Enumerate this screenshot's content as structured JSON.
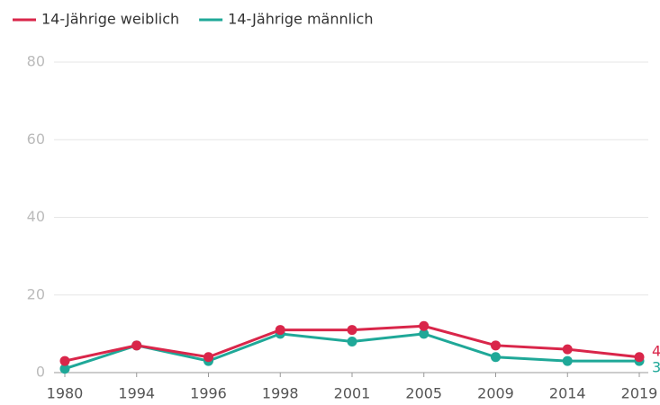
{
  "chart_data": {
    "type": "line",
    "categories": [
      "1980",
      "1994",
      "1996",
      "1998",
      "2001",
      "2005",
      "2009",
      "2014",
      "2019"
    ],
    "series": [
      {
        "name": "14-Jährige weiblich",
        "color": "#d9264a",
        "values": [
          3,
          7,
          4,
          11,
          11,
          12,
          7,
          6,
          4
        ]
      },
      {
        "name": "14-Jährige männlich",
        "color": "#1fa898",
        "values": [
          1,
          7,
          3,
          10,
          8,
          10,
          4,
          3,
          3
        ]
      }
    ],
    "ylim": [
      0,
      80
    ],
    "yticks": [
      0,
      20,
      40,
      60,
      80
    ],
    "grid": true
  }
}
